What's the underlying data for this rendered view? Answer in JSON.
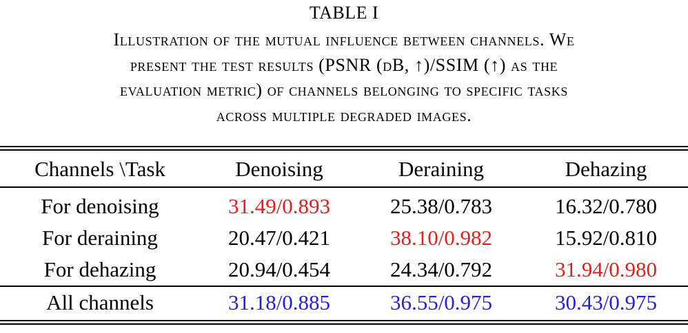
{
  "table_label": "TABLE I",
  "caption_lines": [
    "Illustration of the mutual influence between channels. We",
    "present the test results (PSNR (dB, ↑)/SSIM (↑) as the",
    "evaluation metric) of channels belonging to specific tasks",
    "across multiple degraded images."
  ],
  "table": {
    "headers": [
      "Channels \\Task",
      "Denoising",
      "Deraining",
      "Dehazing"
    ],
    "rows": [
      {
        "label": "For denoising",
        "cells": [
          "31.49/0.893",
          "25.38/0.783",
          "16.32/0.780"
        ]
      },
      {
        "label": "For deraining",
        "cells": [
          "20.47/0.421",
          "38.10/0.982",
          "15.92/0.810"
        ]
      },
      {
        "label": "For dehazing",
        "cells": [
          "20.94/0.454",
          "24.34/0.792",
          "31.94/0.980"
        ]
      }
    ],
    "summary_row": {
      "label": "All channels",
      "cells": [
        "31.18/0.885",
        "36.55/0.975",
        "30.43/0.975"
      ]
    }
  },
  "colors": {
    "diagonal_highlight": "#e0201c",
    "all_channels_highlight": "#2222dd",
    "text": "#000000"
  }
}
